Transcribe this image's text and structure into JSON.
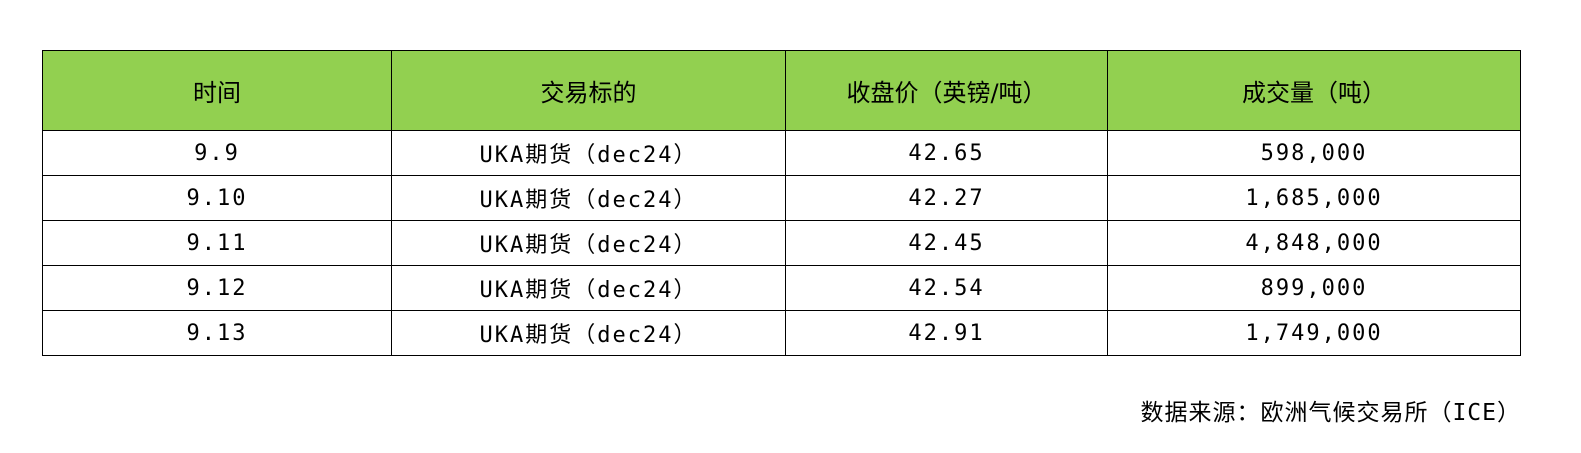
{
  "table": {
    "header_color": "#92D050",
    "columns": [
      "时间",
      "交易标的",
      "收盘价（英镑/吨）",
      "成交量（吨）"
    ],
    "rows": [
      [
        "9.9",
        "UKA期货（dec24）",
        "42.65",
        "598,000"
      ],
      [
        "9.10",
        "UKA期货（dec24）",
        "42.27",
        "1,685,000"
      ],
      [
        "9.11",
        "UKA期货（dec24）",
        "42.45",
        "4,848,000"
      ],
      [
        "9.12",
        "UKA期货（dec24）",
        "42.54",
        "899,000"
      ],
      [
        "9.13",
        "UKA期货（dec24）",
        "42.91",
        "1,749,000"
      ]
    ]
  },
  "source": "数据来源：欧洲气候交易所（ICE）"
}
